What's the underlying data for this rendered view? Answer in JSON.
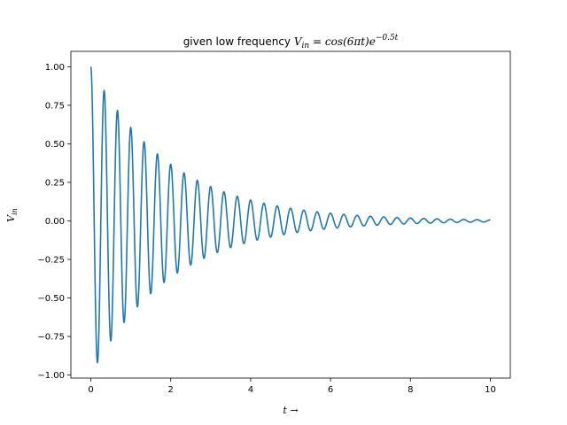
{
  "chart_data": {
    "type": "line",
    "title": {
      "prefix": "given low frequency ",
      "lhs": "V",
      "lhs_sub": "in",
      "eq": " = ",
      "rhs": "cos(6πt)e",
      "rhs_sup": "−0.5t"
    },
    "xlabel": "t →",
    "ylabel": {
      "base": "V",
      "sub": "in"
    },
    "xlim": [
      -0.5,
      10.5
    ],
    "ylim": [
      -1.02,
      1.1
    ],
    "x_ticks": [
      0,
      2,
      4,
      6,
      8,
      10
    ],
    "x_tick_labels": [
      "0",
      "2",
      "4",
      "6",
      "8",
      "10"
    ],
    "y_ticks": [
      -1.0,
      -0.75,
      -0.5,
      -0.25,
      0.0,
      0.25,
      0.5,
      0.75,
      1.0
    ],
    "y_tick_labels": [
      "−1.00",
      "−0.75",
      "−0.50",
      "−0.25",
      "0.00",
      "0.25",
      "0.50",
      "0.75",
      "1.00"
    ],
    "grid": false,
    "series": [
      {
        "color": "#1f77b4",
        "function": {
          "amplitude": 1.0,
          "angular_frequency": 18.849556,
          "decay_rate": 0.5,
          "t_start": 0,
          "t_end": 10
        },
        "samples": 1500
      }
    ]
  }
}
